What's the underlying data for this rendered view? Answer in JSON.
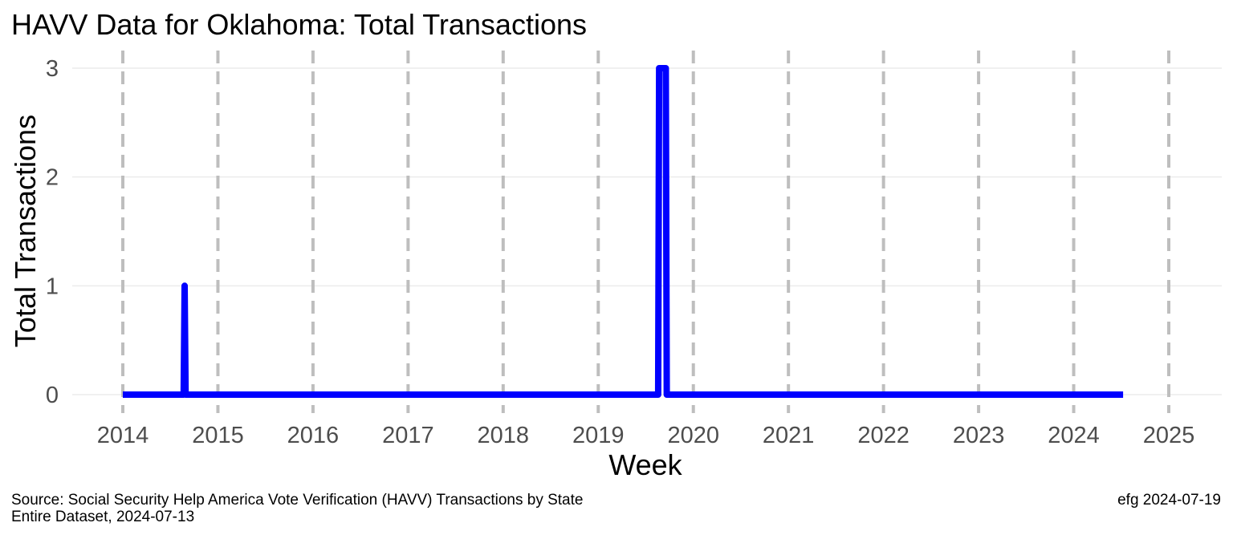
{
  "chart_data": {
    "type": "line",
    "title": "HAVV Data for Oklahoma:  Total Transactions",
    "xlabel": "Week",
    "ylabel": "Total Transactions",
    "x_ticks": [
      "2014",
      "2015",
      "2016",
      "2017",
      "2018",
      "2019",
      "2020",
      "2021",
      "2022",
      "2023",
      "2024",
      "2025"
    ],
    "y_ticks": [
      0,
      1,
      2,
      3
    ],
    "xlim": [
      2014.0,
      2025.0
    ],
    "ylim": [
      0,
      3
    ],
    "grid": true,
    "vertical_year_lines": "dashed",
    "series": [
      {
        "color": "#0000ff",
        "points": [
          {
            "x": 2014.0,
            "y": 0
          },
          {
            "x": 2014.64,
            "y": 0
          },
          {
            "x": 2014.65,
            "y": 1
          },
          {
            "x": 2014.66,
            "y": 0
          },
          {
            "x": 2019.63,
            "y": 0
          },
          {
            "x": 2019.64,
            "y": 3
          },
          {
            "x": 2019.71,
            "y": 3
          },
          {
            "x": 2019.72,
            "y": 0
          },
          {
            "x": 2024.52,
            "y": 0
          }
        ]
      }
    ]
  },
  "caption": {
    "source_line1": "Source:  Social Security Help America Vote Verification (HAVV) Transactions by State",
    "source_line2": "Entire Dataset, 2024-07-13",
    "signature": "efg 2024-07-19"
  }
}
